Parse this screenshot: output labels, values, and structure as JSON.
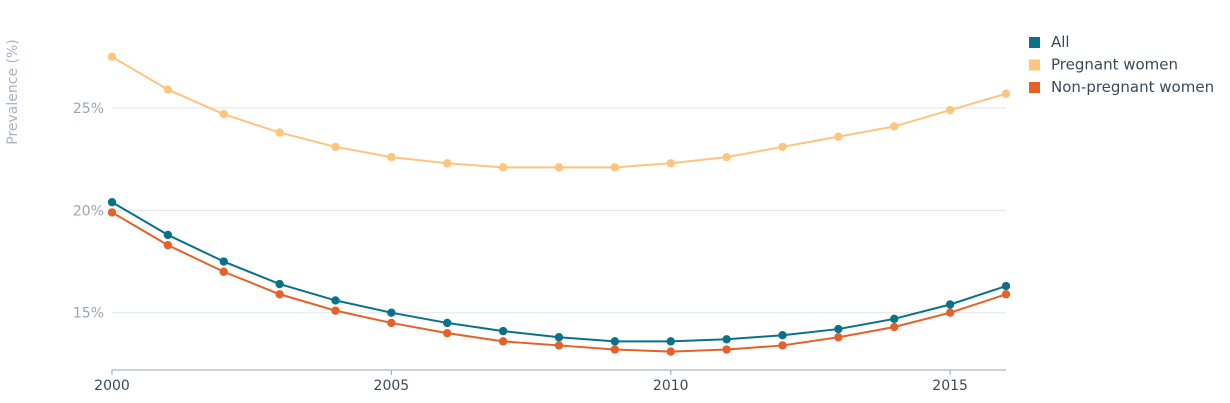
{
  "chart_data": {
    "type": "line",
    "ylabel": "Prevalence (%)",
    "x": [
      2000,
      2001,
      2002,
      2003,
      2004,
      2005,
      2006,
      2007,
      2008,
      2009,
      2010,
      2011,
      2012,
      2013,
      2014,
      2015,
      2016
    ],
    "xticks": [
      2000,
      2005,
      2010,
      2015
    ],
    "xtick_labels": [
      "2000",
      "2005",
      "2010",
      "2015"
    ],
    "yticks": [
      15,
      20,
      25
    ],
    "ytick_labels": [
      "15%",
      "20%",
      "25%"
    ],
    "ylim": [
      12.2,
      29.3
    ],
    "grid": true,
    "legend_position": "top-right",
    "series": [
      {
        "name": "All",
        "color": "#0b7189",
        "values": [
          20.4,
          18.8,
          17.5,
          16.4,
          15.6,
          15.0,
          14.5,
          14.1,
          13.8,
          13.6,
          13.6,
          13.7,
          13.9,
          14.2,
          14.7,
          15.4,
          16.3
        ]
      },
      {
        "name": "Pregnant women",
        "color": "#fdc57d",
        "values": [
          27.5,
          25.9,
          24.7,
          23.8,
          23.1,
          22.6,
          22.3,
          22.1,
          22.1,
          22.1,
          22.3,
          22.6,
          23.1,
          23.6,
          24.1,
          24.9,
          25.7
        ]
      },
      {
        "name": "Non-pregnant women",
        "color": "#e4622a",
        "values": [
          19.9,
          18.3,
          17.0,
          15.9,
          15.1,
          14.5,
          14.0,
          13.6,
          13.4,
          13.2,
          13.1,
          13.2,
          13.4,
          13.8,
          14.3,
          15.0,
          15.9
        ]
      }
    ]
  }
}
